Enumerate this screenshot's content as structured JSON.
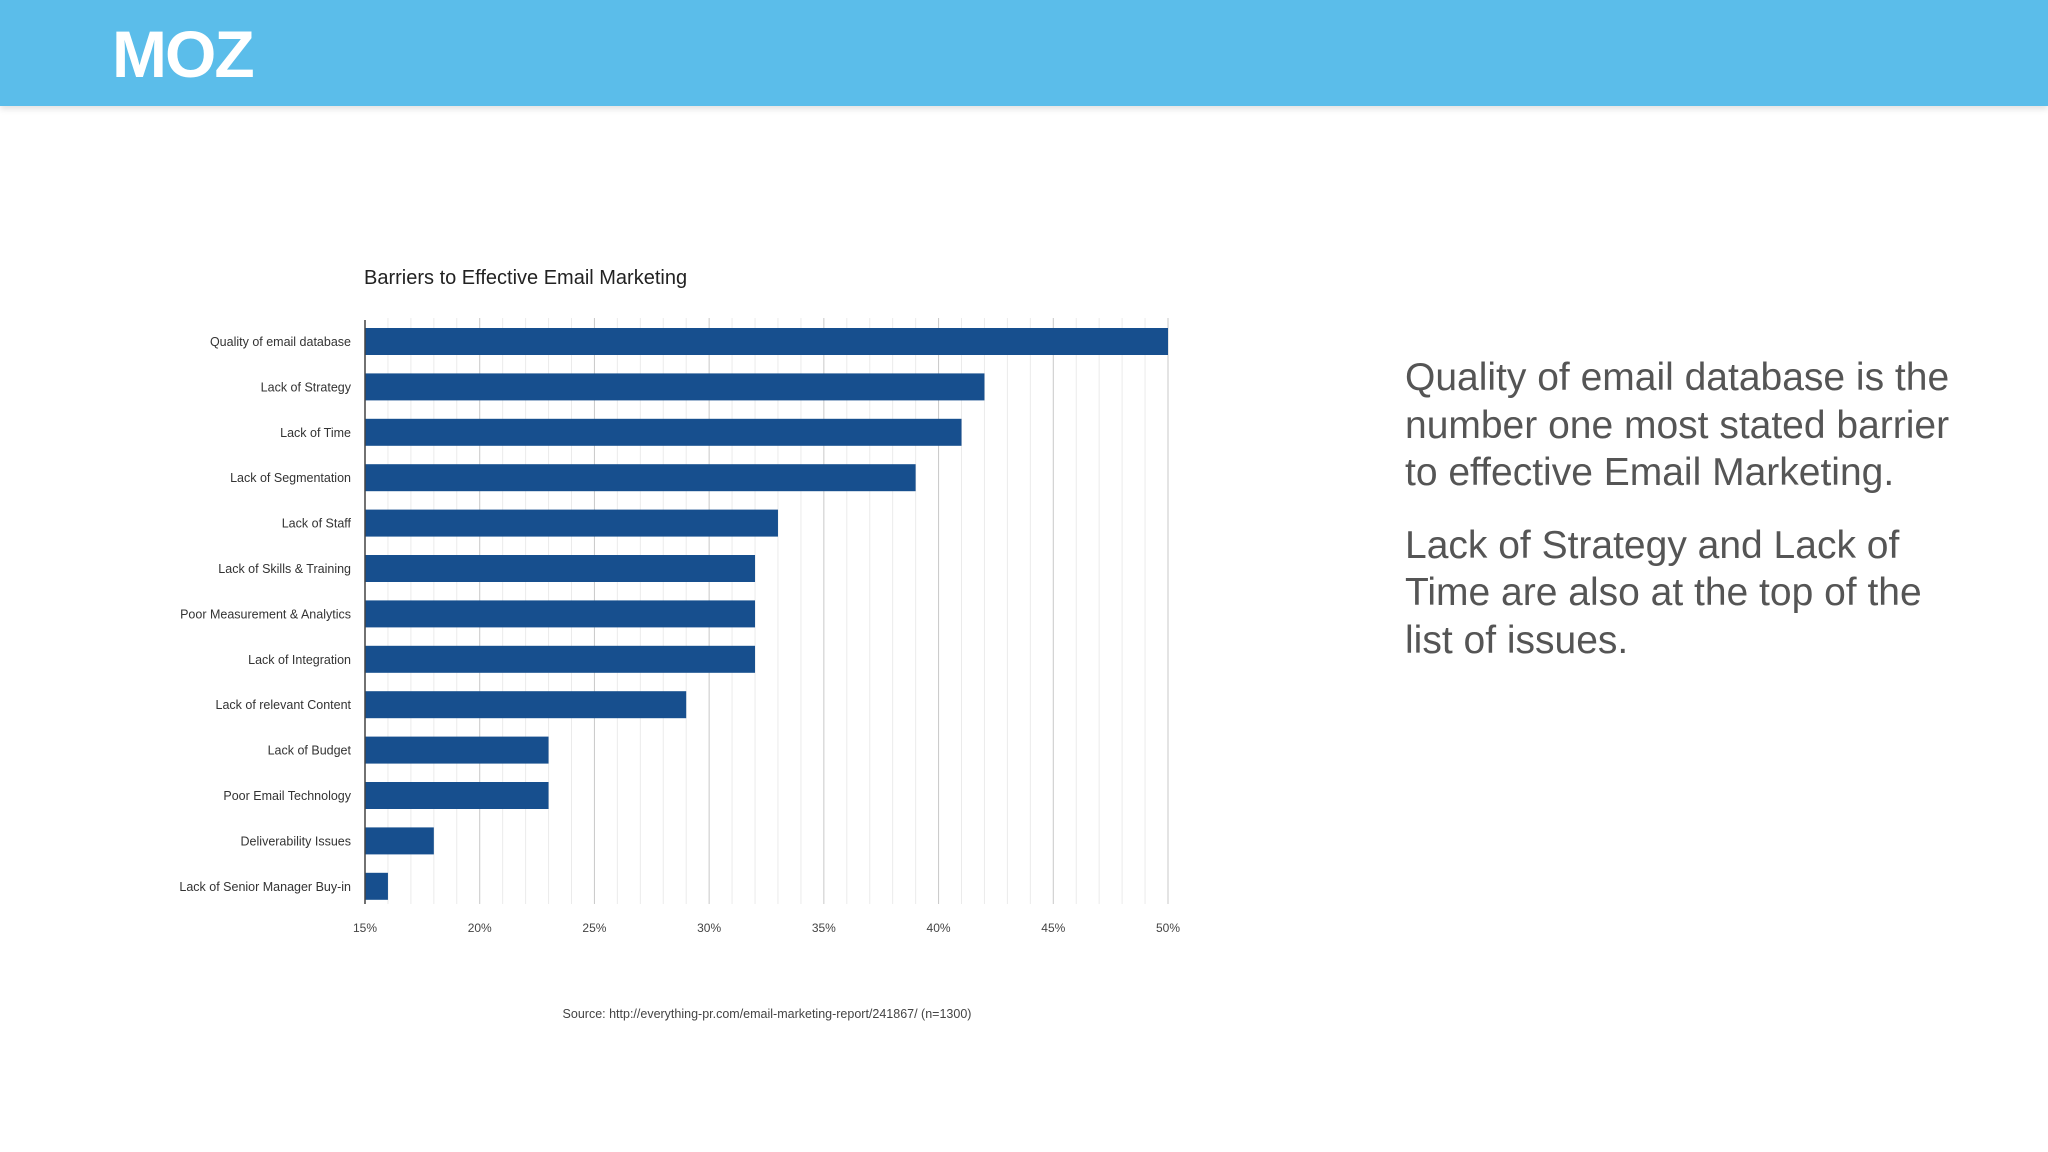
{
  "header": {
    "logo_text": "MOZ",
    "banner_color": "#5bbdea"
  },
  "chart_data": {
    "type": "bar",
    "orientation": "horizontal",
    "title": "Barriers to Effective Email Marketing",
    "categories": [
      "Quality of email database",
      "Lack of Strategy",
      "Lack of Time",
      "Lack of Segmentation",
      "Lack of Staff",
      "Lack of Skills & Training",
      "Poor Measurement & Analytics",
      "Lack of Integration",
      "Lack of relevant Content",
      "Lack of Budget",
      "Poor Email Technology",
      "Deliverability Issues",
      "Lack of Senior Manager Buy-in"
    ],
    "values": [
      50,
      42,
      41,
      39,
      33,
      32,
      32,
      32,
      29,
      23,
      23,
      18,
      16
    ],
    "xlim": [
      15,
      50
    ],
    "xticks": [
      15,
      20,
      25,
      30,
      35,
      40,
      45,
      50
    ],
    "xtick_labels": [
      "15%",
      "20%",
      "25%",
      "30%",
      "35%",
      "40%",
      "45%",
      "50%"
    ],
    "grid": "vertical minor lines every 1%",
    "bar_color": "#174f8e",
    "source": "Source: http://everything-pr.com/email-marketing-report/241867/ (n=1300)"
  },
  "commentary": {
    "paragraph1": "Quality of email database is the number one most stated barrier to effective Email Marketing.",
    "paragraph2": "Lack of Strategy and Lack of Time are also at the top of the list of issues."
  }
}
